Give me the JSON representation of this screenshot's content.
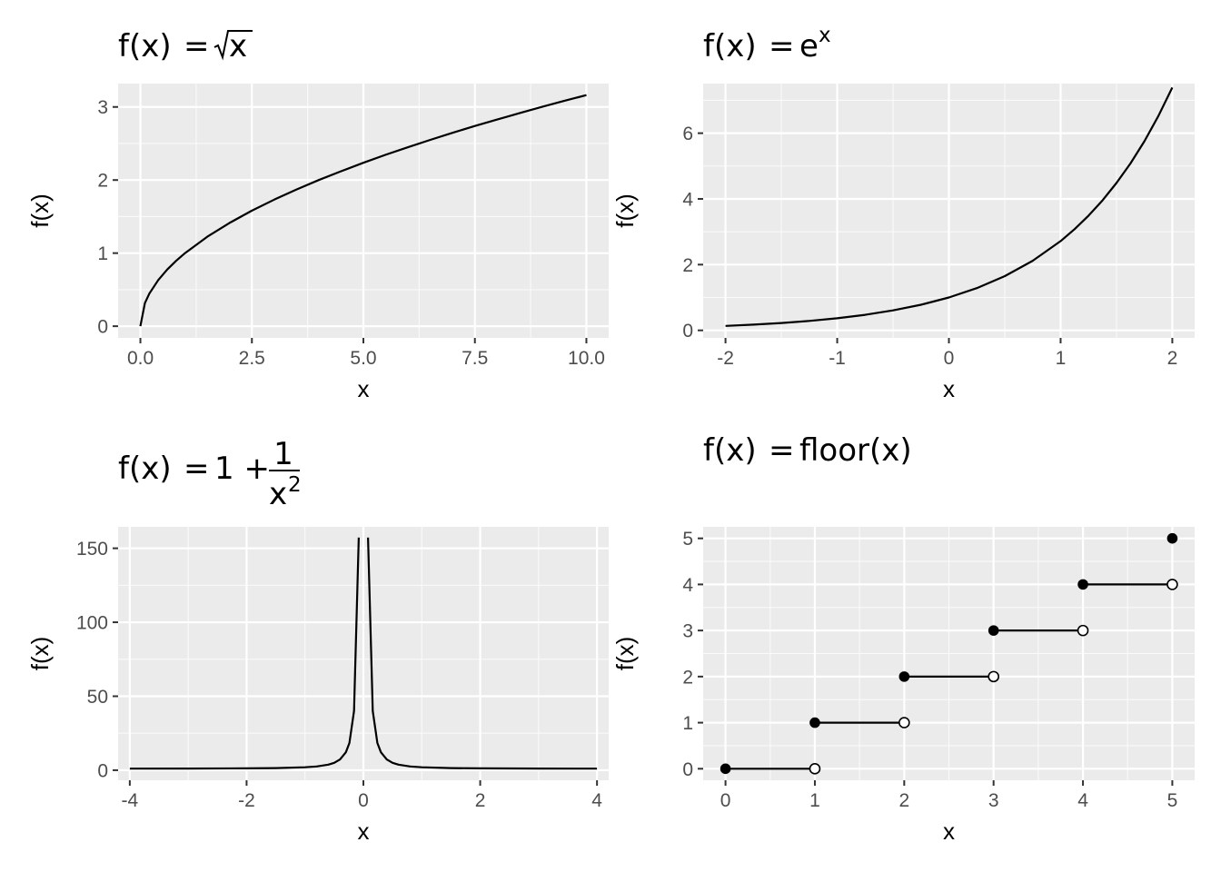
{
  "chart_data": [
    {
      "type": "line",
      "title": {
        "lhs": "f(x)",
        "eq": "=",
        "rhs_kind": "sqrt",
        "rhs_text": "x"
      },
      "xlabel": "x",
      "ylabel": "f(x)",
      "xlim": [
        -0.5,
        10.5
      ],
      "ylim": [
        -0.16,
        3.32
      ],
      "xticks": [
        0,
        2.5,
        5,
        7.5,
        10
      ],
      "xtick_labels": [
        "0.0",
        "2.5",
        "5.0",
        "7.5",
        "10.0"
      ],
      "yticks": [
        0,
        1,
        2,
        3
      ],
      "ytick_labels": [
        "0",
        "1",
        "2",
        "3"
      ],
      "x": [
        0,
        0.1,
        0.2,
        0.4,
        0.6,
        0.8,
        1,
        1.5,
        2,
        2.5,
        3,
        3.5,
        4,
        4.5,
        5,
        5.5,
        6,
        6.5,
        7,
        7.5,
        8,
        8.5,
        9,
        9.5,
        10
      ],
      "y": [
        0,
        0.316,
        0.447,
        0.632,
        0.775,
        0.894,
        1,
        1.225,
        1.414,
        1.581,
        1.732,
        1.871,
        2,
        2.121,
        2.236,
        2.345,
        2.449,
        2.55,
        2.646,
        2.739,
        2.828,
        2.915,
        3,
        3.082,
        3.162
      ],
      "grid": true
    },
    {
      "type": "line",
      "title": {
        "lhs": "f(x)",
        "eq": "=",
        "rhs_kind": "power",
        "rhs_text": "e",
        "rhs_sup": "x"
      },
      "xlabel": "x",
      "ylabel": "f(x)",
      "xlim": [
        -2.2,
        2.2
      ],
      "ylim": [
        -0.23,
        7.51
      ],
      "xticks": [
        -2,
        -1,
        0,
        1,
        2
      ],
      "xtick_labels": [
        "-2",
        "-1",
        "0",
        "1",
        "2"
      ],
      "yticks": [
        0,
        2,
        4,
        6
      ],
      "ytick_labels": [
        "0",
        "2",
        "4",
        "6"
      ],
      "x": [
        -2,
        -1.75,
        -1.5,
        -1.25,
        -1,
        -0.75,
        -0.5,
        -0.25,
        0,
        0.25,
        0.5,
        0.75,
        1,
        1.125,
        1.25,
        1.375,
        1.5,
        1.625,
        1.75,
        1.875,
        2
      ],
      "y": [
        0.135,
        0.174,
        0.223,
        0.287,
        0.368,
        0.472,
        0.607,
        0.779,
        1,
        1.284,
        1.649,
        2.117,
        2.718,
        3.08,
        3.49,
        3.955,
        4.482,
        5.078,
        5.755,
        6.52,
        7.389
      ],
      "grid": true
    },
    {
      "type": "line",
      "title": {
        "lhs": "f(x)",
        "eq": "=",
        "rhs_kind": "fraction",
        "rhs_text": "1 +",
        "num": "1",
        "den": "x",
        "den_sup": "2"
      },
      "xlabel": "x",
      "ylabel": "f(x)",
      "xlim": [
        -4.2,
        4.2
      ],
      "ylim": [
        -6.8,
        164.5
      ],
      "xticks": [
        -4,
        -2,
        0,
        2,
        4
      ],
      "xtick_labels": [
        "-4",
        "-2",
        "0",
        "2",
        "4"
      ],
      "yticks": [
        0,
        50,
        100,
        150
      ],
      "ytick_labels": [
        "0",
        "50",
        "100",
        "150"
      ],
      "x": [
        -4,
        -3,
        -2,
        -1.5,
        -1,
        -0.8,
        -0.6,
        -0.5,
        -0.4,
        -0.3,
        -0.24,
        -0.16,
        -0.08
      ],
      "y": [
        1.063,
        1.111,
        1.25,
        1.444,
        2,
        2.563,
        3.778,
        5,
        7.25,
        12.11,
        18.36,
        40.06,
        157.25
      ],
      "mirror": true,
      "grid": true
    },
    {
      "type": "scatter",
      "title": {
        "lhs": "f(x)",
        "eq": "=",
        "rhs_kind": "text",
        "rhs_text": "floor(x)"
      },
      "xlabel": "x",
      "ylabel": "f(x)",
      "xlim": [
        -0.25,
        5.25
      ],
      "ylim": [
        -0.25,
        5.25
      ],
      "xticks": [
        0,
        1,
        2,
        3,
        4,
        5
      ],
      "xtick_labels": [
        "0",
        "1",
        "2",
        "3",
        "4",
        "5"
      ],
      "yticks": [
        0,
        1,
        2,
        3,
        4,
        5
      ],
      "ytick_labels": [
        "0",
        "1",
        "2",
        "3",
        "4",
        "5"
      ],
      "segments": [
        [
          0,
          1,
          0
        ],
        [
          1,
          2,
          1
        ],
        [
          2,
          3,
          2
        ],
        [
          3,
          4,
          3
        ],
        [
          4,
          5,
          4
        ]
      ],
      "closed_points": [
        [
          0,
          0
        ],
        [
          1,
          1
        ],
        [
          2,
          2
        ],
        [
          3,
          3
        ],
        [
          4,
          4
        ],
        [
          5,
          5
        ]
      ],
      "open_points": [
        [
          1,
          0
        ],
        [
          2,
          1
        ],
        [
          3,
          2
        ],
        [
          4,
          3
        ],
        [
          5,
          4
        ]
      ],
      "grid": true
    }
  ]
}
